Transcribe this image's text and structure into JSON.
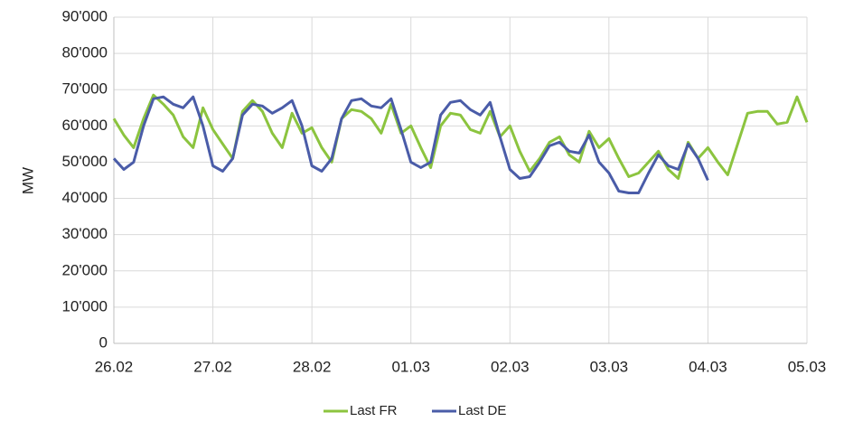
{
  "chart_data": {
    "type": "line",
    "y_label": "MW",
    "xlim": [
      0,
      7
    ],
    "xticks": [
      {
        "value": 0,
        "label": "26.02"
      },
      {
        "value": 1,
        "label": "27.02"
      },
      {
        "value": 2,
        "label": "28.02"
      },
      {
        "value": 3,
        "label": "01.03"
      },
      {
        "value": 4,
        "label": "02.03"
      },
      {
        "value": 5,
        "label": "03.03"
      },
      {
        "value": 6,
        "label": "04.03"
      },
      {
        "value": 7,
        "label": "05.03"
      }
    ],
    "ylim": [
      0,
      90000
    ],
    "yticks": [
      0,
      {
        "value": 10000,
        "label": "10'000"
      },
      {
        "value": 20000,
        "label": "20'000"
      },
      {
        "value": 30000,
        "label": "30'000"
      },
      {
        "value": 40000,
        "label": "40'000"
      },
      {
        "value": 50000,
        "label": "50'000"
      },
      {
        "value": 60000,
        "label": "60'000"
      },
      {
        "value": 70000,
        "label": "70'000"
      },
      {
        "value": 80000,
        "label": "80'000"
      },
      {
        "value": 90000,
        "label": "90'000"
      }
    ],
    "grid": true,
    "legend": "bottom",
    "series": [
      {
        "name": "Last FR",
        "color": "#8cc43f",
        "x": [
          0,
          0.1,
          0.2,
          0.3,
          0.4,
          0.5,
          0.6,
          0.7,
          0.8,
          0.9,
          1,
          1.1,
          1.2,
          1.3,
          1.4,
          1.5,
          1.6,
          1.7,
          1.8,
          1.9,
          2,
          2.1,
          2.2,
          2.3,
          2.4,
          2.5,
          2.6,
          2.7,
          2.8,
          2.9,
          3,
          3.1,
          3.2,
          3.3,
          3.4,
          3.5,
          3.6,
          3.7,
          3.8,
          3.9,
          4,
          4.1,
          4.2,
          4.3,
          4.4,
          4.5,
          4.6,
          4.7,
          4.8,
          4.9,
          5,
          5.1,
          5.2,
          5.3,
          5.4,
          5.5,
          5.6,
          5.7,
          5.8,
          5.9,
          6,
          6.1,
          6.2,
          6.3,
          6.4,
          6.5,
          6.6,
          6.7,
          6.8,
          6.9,
          7
        ],
        "values": [
          62000,
          57500,
          54000,
          62000,
          68500,
          66000,
          63000,
          57000,
          54000,
          65000,
          59000,
          55000,
          51000,
          64000,
          67000,
          64000,
          58000,
          54000,
          63500,
          58000,
          59500,
          54000,
          50000,
          62000,
          64500,
          64000,
          62000,
          58000,
          66000,
          58000,
          60000,
          54000,
          48500,
          60000,
          63500,
          63000,
          59000,
          58000,
          64000,
          57000,
          60000,
          53000,
          47500,
          51000,
          55500,
          57000,
          52000,
          50000,
          58500,
          54000,
          56500,
          51000,
          46000,
          47000,
          50000,
          53000,
          48000,
          45500,
          55500,
          51000,
          54000,
          50000,
          46500,
          55000,
          63500,
          64000,
          64000,
          60500,
          61000,
          68000,
          61000
        ]
      },
      {
        "name": "Last DE",
        "color": "#4a5ca8",
        "x": [
          0,
          0.1,
          0.2,
          0.3,
          0.4,
          0.5,
          0.6,
          0.7,
          0.8,
          0.9,
          1,
          1.1,
          1.2,
          1.3,
          1.4,
          1.5,
          1.6,
          1.7,
          1.8,
          1.9,
          2,
          2.1,
          2.2,
          2.3,
          2.4,
          2.5,
          2.6,
          2.7,
          2.8,
          2.9,
          3,
          3.1,
          3.2,
          3.3,
          3.4,
          3.5,
          3.6,
          3.7,
          3.8,
          3.9,
          4,
          4.1,
          4.2,
          4.3,
          4.4,
          4.5,
          4.6,
          4.7,
          4.8,
          4.9,
          5,
          5.1,
          5.2,
          5.3,
          5.4,
          5.5,
          5.6,
          5.7,
          5.8,
          5.9,
          6
        ],
        "values": [
          51000,
          48000,
          50000,
          60000,
          67500,
          68000,
          66000,
          65000,
          68000,
          60000,
          49000,
          47500,
          51000,
          63000,
          66000,
          65500,
          63500,
          65000,
          67000,
          60000,
          49000,
          47500,
          51000,
          62000,
          67000,
          67500,
          65500,
          65000,
          67500,
          59000,
          50000,
          48500,
          50000,
          63000,
          66500,
          67000,
          64500,
          63000,
          66500,
          57000,
          48000,
          45500,
          46000,
          50000,
          54500,
          55500,
          53000,
          52500,
          57500,
          50000,
          47000,
          42000,
          41500,
          41500,
          47000,
          52000,
          49000,
          48000,
          55000,
          51000,
          45000
        ]
      }
    ]
  }
}
